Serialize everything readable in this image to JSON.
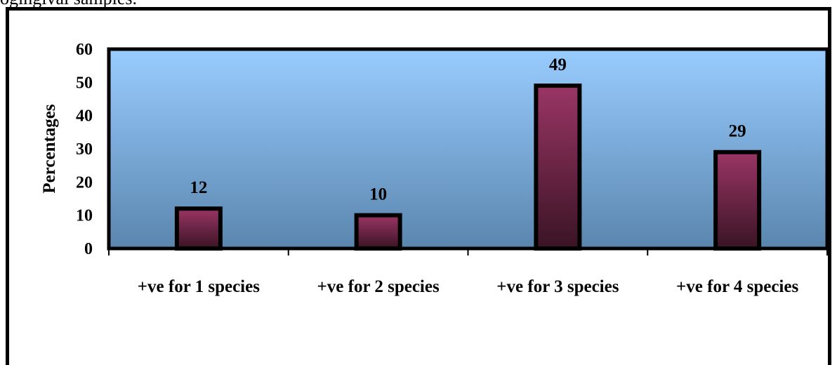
{
  "caption_fragment": "ogingival samples.",
  "chart_data": {
    "type": "bar",
    "categories": [
      "+ve for 1 species",
      "+ve for 2 species",
      "+ve for 3 species",
      "+ve for 4 species"
    ],
    "values": [
      12,
      10,
      49,
      29
    ],
    "data_labels": [
      "12",
      "10",
      "49",
      "29"
    ],
    "title": "",
    "xlabel": "",
    "ylabel": "Percentages",
    "ylim": [
      0,
      60
    ],
    "yticks": [
      0,
      10,
      20,
      30,
      40,
      50,
      60
    ],
    "grid": false,
    "legend": "none",
    "colors": {
      "plot_bg_top": "#99CCFF",
      "plot_bg_bottom": "#5A86AE",
      "bar_top": "#9A3565",
      "bar_bottom": "#3A1424",
      "bar_outline": "#000000",
      "plot_border": "#000000"
    }
  }
}
